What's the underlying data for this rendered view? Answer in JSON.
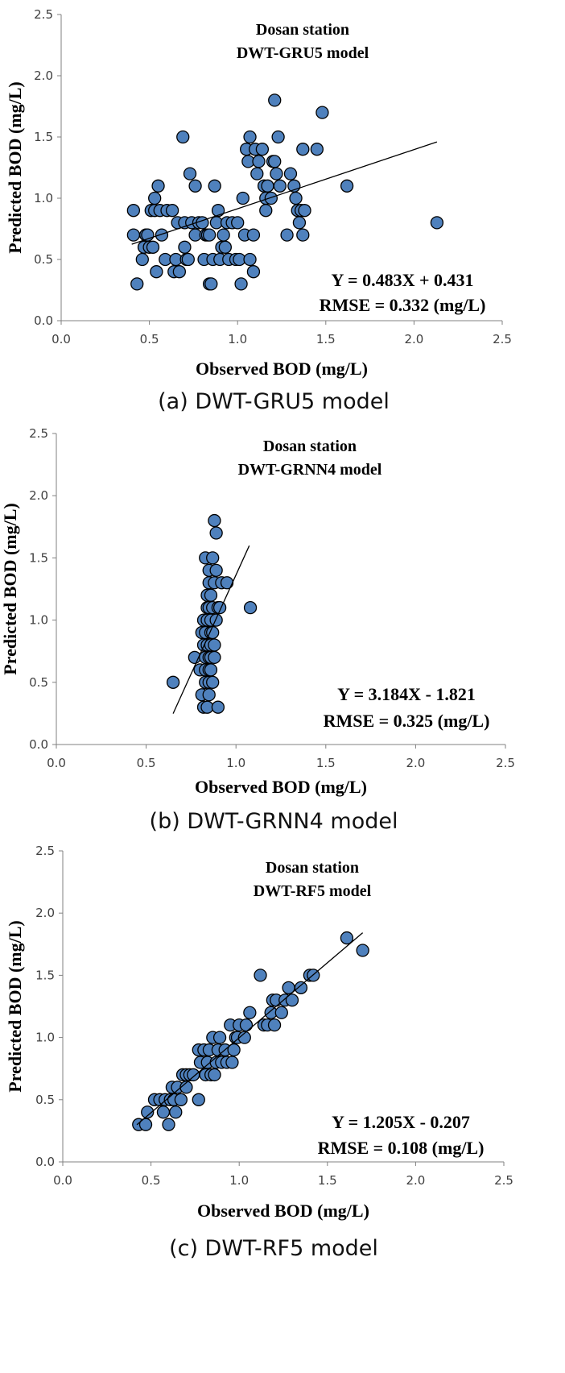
{
  "chart_data": [
    {
      "type": "scatter",
      "title": "Dosan station",
      "subtitle": "DWT-GRU5 model",
      "xlabel": "Observed BOD (mg/L)",
      "ylabel": "Predicted BOD (mg/L)",
      "xlim": [
        0,
        2.5
      ],
      "ylim": [
        0,
        2.5
      ],
      "xticks": [
        "0.0",
        "0.5",
        "1.0",
        "1.5",
        "2.0",
        "2.5"
      ],
      "yticks": [
        "0.0",
        "0.5",
        "1.0",
        "1.5",
        "2.0",
        "2.5"
      ],
      "grid": false,
      "marker_color": "#4f81bd",
      "equation": "Y = 0.483X + 0.431",
      "rmse": "RMSE = 0.332 (mg/L)",
      "trendline": {
        "slope": 0.483,
        "intercept": 0.431,
        "x_range": [
          0.4,
          2.13
        ]
      },
      "caption": "(a) DWT-GRU5 model",
      "points": [
        [
          0.41,
          0.9
        ],
        [
          0.41,
          0.7
        ],
        [
          0.43,
          0.3
        ],
        [
          0.46,
          0.5
        ],
        [
          0.47,
          0.6
        ],
        [
          0.48,
          0.7
        ],
        [
          0.49,
          0.7
        ],
        [
          0.5,
          0.6
        ],
        [
          0.51,
          0.9
        ],
        [
          0.52,
          0.6
        ],
        [
          0.53,
          0.9
        ],
        [
          0.53,
          1.0
        ],
        [
          0.54,
          0.4
        ],
        [
          0.55,
          1.1
        ],
        [
          0.56,
          0.9
        ],
        [
          0.57,
          0.7
        ],
        [
          0.59,
          0.5
        ],
        [
          0.6,
          0.9
        ],
        [
          0.63,
          0.9
        ],
        [
          0.64,
          0.4
        ],
        [
          0.65,
          0.5
        ],
        [
          0.66,
          0.8
        ],
        [
          0.67,
          0.4
        ],
        [
          0.69,
          1.5
        ],
        [
          0.7,
          0.6
        ],
        [
          0.7,
          0.8
        ],
        [
          0.71,
          0.5
        ],
        [
          0.72,
          0.5
        ],
        [
          0.73,
          1.2
        ],
        [
          0.74,
          0.8
        ],
        [
          0.76,
          1.1
        ],
        [
          0.76,
          0.7
        ],
        [
          0.78,
          0.8
        ],
        [
          0.8,
          0.8
        ],
        [
          0.81,
          0.5
        ],
        [
          0.82,
          0.7
        ],
        [
          0.83,
          0.7
        ],
        [
          0.84,
          0.3
        ],
        [
          0.84,
          0.7
        ],
        [
          0.85,
          0.3
        ],
        [
          0.86,
          0.5
        ],
        [
          0.87,
          1.1
        ],
        [
          0.88,
          0.8
        ],
        [
          0.89,
          0.9
        ],
        [
          0.9,
          0.5
        ],
        [
          0.91,
          0.6
        ],
        [
          0.92,
          0.7
        ],
        [
          0.93,
          0.6
        ],
        [
          0.94,
          0.8
        ],
        [
          0.95,
          0.5
        ],
        [
          0.97,
          0.8
        ],
        [
          0.99,
          0.5
        ],
        [
          1.0,
          0.8
        ],
        [
          1.01,
          0.5
        ],
        [
          1.02,
          0.3
        ],
        [
          1.03,
          1.0
        ],
        [
          1.04,
          0.7
        ],
        [
          1.05,
          1.4
        ],
        [
          1.06,
          1.3
        ],
        [
          1.07,
          1.5
        ],
        [
          1.07,
          0.5
        ],
        [
          1.09,
          0.4
        ],
        [
          1.09,
          0.7
        ],
        [
          1.1,
          1.4
        ],
        [
          1.11,
          1.2
        ],
        [
          1.12,
          1.3
        ],
        [
          1.14,
          1.4
        ],
        [
          1.15,
          1.1
        ],
        [
          1.16,
          1.0
        ],
        [
          1.16,
          0.9
        ],
        [
          1.17,
          1.1
        ],
        [
          1.19,
          1.0
        ],
        [
          1.2,
          1.3
        ],
        [
          1.21,
          1.3
        ],
        [
          1.21,
          1.8
        ],
        [
          1.22,
          1.2
        ],
        [
          1.23,
          1.5
        ],
        [
          1.24,
          1.1
        ],
        [
          1.28,
          0.7
        ],
        [
          1.3,
          1.2
        ],
        [
          1.32,
          1.1
        ],
        [
          1.33,
          1.0
        ],
        [
          1.34,
          0.9
        ],
        [
          1.35,
          0.8
        ],
        [
          1.36,
          0.9
        ],
        [
          1.37,
          1.4
        ],
        [
          1.37,
          0.7
        ],
        [
          1.38,
          0.9
        ],
        [
          1.45,
          1.4
        ],
        [
          1.48,
          1.7
        ],
        [
          1.62,
          1.1
        ],
        [
          2.13,
          0.8
        ]
      ]
    },
    {
      "type": "scatter",
      "title": "Dosan station",
      "subtitle": "DWT-GRNN4 model",
      "xlabel": "Observed BOD (mg/L)",
      "ylabel": "Predicted BOD (mg/L)",
      "xlim": [
        0,
        2.5
      ],
      "ylim": [
        0,
        2.5
      ],
      "xticks": [
        "0.0",
        "0.5",
        "1.0",
        "1.5",
        "2.0",
        "2.5"
      ],
      "yticks": [
        "0.0",
        "0.5",
        "1.0",
        "1.5",
        "2.0",
        "2.5"
      ],
      "grid": false,
      "marker_color": "#4f81bd",
      "equation": "Y = 3.184X - 1.821",
      "rmse": "RMSE = 0.325 (mg/L)",
      "trendline": {
        "slope": 3.184,
        "intercept": -1.821,
        "x_range": [
          0.65,
          1.074
        ]
      },
      "caption": "(b) DWT-GRNN4 model",
      "points": [
        [
          0.65,
          0.5
        ],
        [
          0.77,
          0.7
        ],
        [
          0.8,
          0.6
        ],
        [
          0.81,
          0.9
        ],
        [
          0.81,
          0.4
        ],
        [
          0.82,
          0.3
        ],
        [
          0.82,
          0.8
        ],
        [
          0.82,
          1.0
        ],
        [
          0.83,
          0.5
        ],
        [
          0.83,
          0.7
        ],
        [
          0.83,
          1.5
        ],
        [
          0.83,
          0.6
        ],
        [
          0.83,
          0.9
        ],
        [
          0.84,
          1.2
        ],
        [
          0.84,
          1.1
        ],
        [
          0.84,
          0.3
        ],
        [
          0.84,
          0.8
        ],
        [
          0.84,
          1.0
        ],
        [
          0.85,
          0.6
        ],
        [
          0.85,
          1.3
        ],
        [
          0.85,
          0.7
        ],
        [
          0.85,
          1.4
        ],
        [
          0.85,
          0.5
        ],
        [
          0.85,
          0.4
        ],
        [
          0.85,
          1.1
        ],
        [
          0.86,
          0.9
        ],
        [
          0.86,
          1.0
        ],
        [
          0.86,
          0.8
        ],
        [
          0.86,
          0.6
        ],
        [
          0.86,
          1.2
        ],
        [
          0.86,
          0.7
        ],
        [
          0.87,
          1.5
        ],
        [
          0.87,
          0.9
        ],
        [
          0.87,
          1.1
        ],
        [
          0.87,
          0.5
        ],
        [
          0.88,
          1.8
        ],
        [
          0.88,
          0.8
        ],
        [
          0.88,
          1.3
        ],
        [
          0.88,
          0.7
        ],
        [
          0.89,
          1.0
        ],
        [
          0.89,
          1.4
        ],
        [
          0.89,
          1.7
        ],
        [
          0.9,
          0.3
        ],
        [
          0.9,
          1.1
        ],
        [
          0.91,
          1.1
        ],
        [
          0.92,
          1.3
        ],
        [
          0.95,
          1.3
        ],
        [
          1.08,
          1.1
        ]
      ]
    },
    {
      "type": "scatter",
      "title": "Dosan station",
      "subtitle": "DWT-RF5 model",
      "xlabel": "Observed BOD (mg/L)",
      "ylabel": "Predicted BOD (mg/L)",
      "xlim": [
        0,
        2.5
      ],
      "ylim": [
        0,
        2.5
      ],
      "xticks": [
        "0.0",
        "0.5",
        "1.0",
        "1.5",
        "2.0",
        "2.5"
      ],
      "yticks": [
        "0.0",
        "0.5",
        "1.0",
        "1.5",
        "2.0",
        "2.5"
      ],
      "grid": false,
      "marker_color": "#4f81bd",
      "equation": "Y = 1.205X - 0.207",
      "rmse": "RMSE = 0.108 (mg/L)",
      "trendline": {
        "slope": 1.205,
        "intercept": -0.207,
        "x_range": [
          0.42,
          1.7
        ]
      },
      "caption": "(c) DWT-RF5 model",
      "points": [
        [
          0.43,
          0.3
        ],
        [
          0.47,
          0.3
        ],
        [
          0.48,
          0.4
        ],
        [
          0.52,
          0.5
        ],
        [
          0.55,
          0.5
        ],
        [
          0.57,
          0.4
        ],
        [
          0.58,
          0.5
        ],
        [
          0.6,
          0.3
        ],
        [
          0.61,
          0.5
        ],
        [
          0.62,
          0.6
        ],
        [
          0.63,
          0.5
        ],
        [
          0.64,
          0.4
        ],
        [
          0.65,
          0.6
        ],
        [
          0.67,
          0.5
        ],
        [
          0.68,
          0.7
        ],
        [
          0.7,
          0.6
        ],
        [
          0.7,
          0.7
        ],
        [
          0.72,
          0.7
        ],
        [
          0.74,
          0.7
        ],
        [
          0.77,
          0.9
        ],
        [
          0.77,
          0.5
        ],
        [
          0.78,
          0.8
        ],
        [
          0.8,
          0.9
        ],
        [
          0.81,
          0.7
        ],
        [
          0.82,
          0.8
        ],
        [
          0.83,
          0.9
        ],
        [
          0.84,
          0.7
        ],
        [
          0.85,
          1.0
        ],
        [
          0.86,
          0.7
        ],
        [
          0.87,
          0.8
        ],
        [
          0.88,
          0.9
        ],
        [
          0.89,
          1.0
        ],
        [
          0.9,
          0.8
        ],
        [
          0.92,
          0.9
        ],
        [
          0.93,
          0.8
        ],
        [
          0.95,
          1.1
        ],
        [
          0.96,
          0.8
        ],
        [
          0.97,
          0.9
        ],
        [
          0.98,
          1.0
        ],
        [
          0.99,
          1.0
        ],
        [
          1.0,
          1.1
        ],
        [
          1.03,
          1.0
        ],
        [
          1.04,
          1.1
        ],
        [
          1.06,
          1.2
        ],
        [
          1.12,
          1.5
        ],
        [
          1.14,
          1.1
        ],
        [
          1.16,
          1.1
        ],
        [
          1.18,
          1.2
        ],
        [
          1.19,
          1.3
        ],
        [
          1.2,
          1.1
        ],
        [
          1.21,
          1.3
        ],
        [
          1.24,
          1.2
        ],
        [
          1.26,
          1.3
        ],
        [
          1.28,
          1.4
        ],
        [
          1.3,
          1.3
        ],
        [
          1.35,
          1.4
        ],
        [
          1.4,
          1.5
        ],
        [
          1.42,
          1.5
        ],
        [
          1.61,
          1.8
        ],
        [
          1.7,
          1.7
        ]
      ]
    }
  ]
}
